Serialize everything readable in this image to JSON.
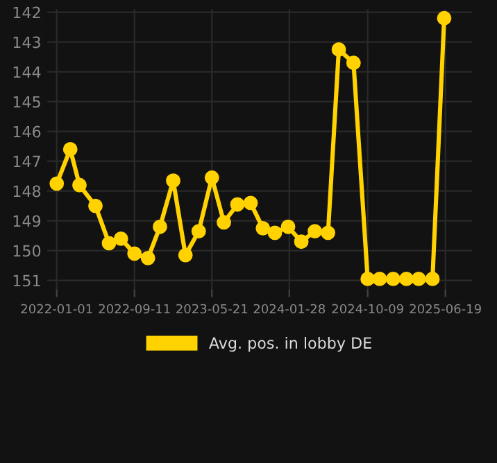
{
  "chart_data": {
    "type": "line",
    "x": [
      "2022-01-01",
      "2022-02-14",
      "2022-03-16",
      "2022-05-07",
      "2022-06-20",
      "2022-07-29",
      "2022-09-11",
      "2022-10-25",
      "2022-12-03",
      "2023-01-15",
      "2023-02-24",
      "2023-04-08",
      "2023-05-21",
      "2023-06-29",
      "2023-08-12",
      "2023-09-24",
      "2023-11-03",
      "2023-12-12",
      "2024-01-24",
      "2024-03-07",
      "2024-04-20",
      "2024-06-02",
      "2024-07-07",
      "2024-08-24",
      "2024-10-09",
      "2024-11-17",
      "2024-12-31",
      "2025-02-12",
      "2025-03-24",
      "2025-05-08",
      "2025-06-15"
    ],
    "series": [
      {
        "name": "Avg. pos. in lobby DE",
        "color": "#ffd200",
        "values": [
          147.75,
          146.6,
          147.8,
          148.5,
          149.75,
          149.6,
          150.1,
          150.25,
          149.2,
          147.65,
          150.15,
          149.35,
          147.55,
          149.05,
          148.45,
          148.4,
          149.25,
          149.4,
          149.2,
          149.7,
          149.35,
          149.4,
          143.25,
          143.7,
          150.95,
          150.95,
          150.95,
          150.95,
          150.95,
          150.95,
          142.2
        ]
      }
    ],
    "xlim": [
      "2021-12-01",
      "2025-09-14"
    ],
    "xticks": [
      "2022-01-01",
      "2022-09-11",
      "2023-05-21",
      "2024-01-28",
      "2024-10-09",
      "2025-06-19"
    ],
    "ylim": [
      151.3,
      141.9
    ],
    "yticks": [
      142,
      143,
      144,
      145,
      146,
      147,
      148,
      149,
      150,
      151
    ],
    "grid": true,
    "legend": "bottom",
    "marker": "circle",
    "line_style": "solid"
  }
}
